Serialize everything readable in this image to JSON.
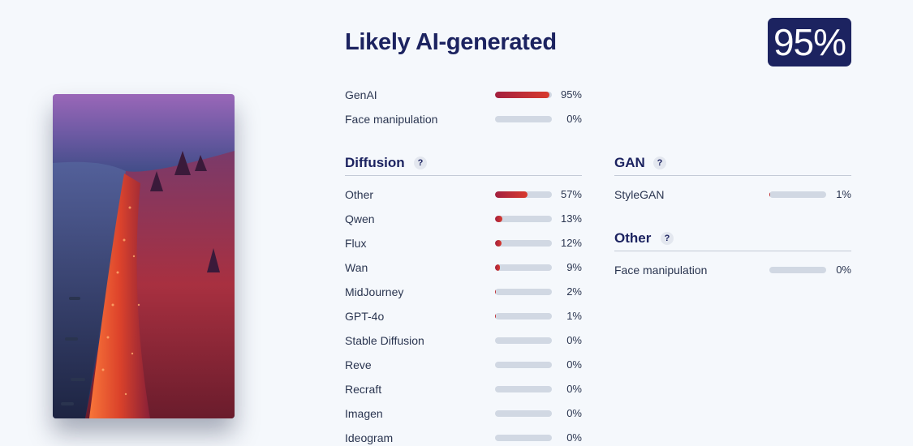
{
  "header": {
    "title": "Likely AI-generated",
    "score": "95%"
  },
  "summary": [
    {
      "label": "GenAI",
      "value": 95,
      "pct": "95%"
    },
    {
      "label": "Face manipulation",
      "value": 0,
      "pct": "0%"
    }
  ],
  "diffusion": {
    "title": "Diffusion",
    "help": "?",
    "items": [
      {
        "label": "Other",
        "value": 57,
        "pct": "57%"
      },
      {
        "label": "Qwen",
        "value": 13,
        "pct": "13%"
      },
      {
        "label": "Flux",
        "value": 12,
        "pct": "12%"
      },
      {
        "label": "Wan",
        "value": 9,
        "pct": "9%"
      },
      {
        "label": "MidJourney",
        "value": 2,
        "pct": "2%"
      },
      {
        "label": "GPT-4o",
        "value": 1,
        "pct": "1%"
      },
      {
        "label": "Stable Diffusion",
        "value": 0,
        "pct": "0%"
      },
      {
        "label": "Reve",
        "value": 0,
        "pct": "0%"
      },
      {
        "label": "Recraft",
        "value": 0,
        "pct": "0%"
      },
      {
        "label": "Imagen",
        "value": 0,
        "pct": "0%"
      },
      {
        "label": "Ideogram",
        "value": 0,
        "pct": "0%"
      }
    ]
  },
  "gan": {
    "title": "GAN",
    "help": "?",
    "items": [
      {
        "label": "StyleGAN",
        "value": 1,
        "pct": "1%"
      }
    ]
  },
  "other": {
    "title": "Other",
    "help": "?",
    "items": [
      {
        "label": "Face manipulation",
        "value": 0,
        "pct": "0%"
      }
    ]
  },
  "colors": {
    "accent": "#1c2360",
    "bar_start": "#a3203f",
    "bar_end": "#d83a2d",
    "track": "#d1d8e3"
  }
}
